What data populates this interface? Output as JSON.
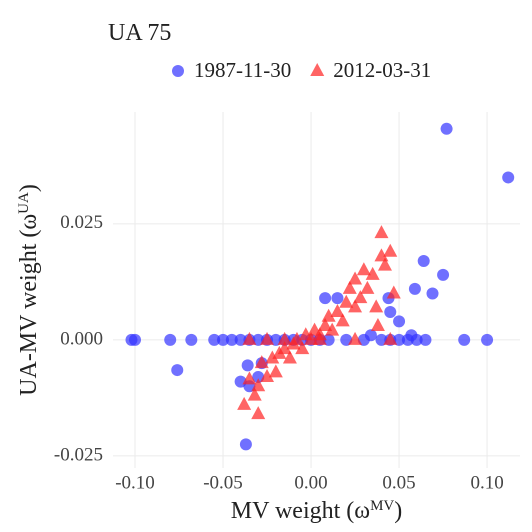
{
  "chart_data": {
    "type": "scatter",
    "title": "UA 75",
    "x_label": [
      "MV weight (ω",
      "MV",
      ")"
    ],
    "y_label": [
      "UA-MV weight (ω",
      "UA",
      ")"
    ],
    "xlim": [
      -0.1125,
      0.1187
    ],
    "ylim": [
      -0.0276,
      0.0491
    ],
    "xticks": [
      {
        "value": -0.1,
        "label": "-0.10"
      },
      -0.05,
      {
        "value": 0,
        "label": "0.00"
      },
      0.05,
      {
        "value": 0.1,
        "label": "0.10"
      }
    ],
    "yticks": [
      -0.025,
      {
        "value": 0,
        "label": "0.000"
      },
      0.025
    ],
    "grid": true,
    "legend": "top",
    "series": [
      {
        "name": "1987-11-30",
        "color": "#3333ff",
        "shape": "circle",
        "x": [
          -0.102,
          -0.1,
          -0.08,
          -0.068,
          -0.055,
          -0.05,
          -0.045,
          -0.04,
          -0.035,
          -0.03,
          -0.025,
          -0.02,
          -0.015,
          -0.01,
          -0.005,
          0,
          0.005,
          0.01,
          0.02,
          0.03,
          0.04,
          0.045,
          0.05,
          0.055,
          0.06,
          0.065,
          0.087,
          0.1,
          0.077,
          0.112,
          0.064,
          0.075,
          0.059,
          0.069,
          0.044,
          0.045,
          0.05,
          0.057,
          0.034,
          -0.076,
          -0.036,
          -0.04,
          -0.037,
          -0.035,
          -0.03,
          -0.028,
          0.008,
          0.015
        ],
        "y": [
          0,
          0,
          0,
          0,
          0,
          0,
          0,
          0,
          0,
          0,
          0,
          0,
          0,
          0,
          0,
          0,
          0,
          0,
          0,
          0,
          0,
          0,
          0,
          0,
          0,
          0,
          0,
          0,
          0.0455,
          0.035,
          0.017,
          0.014,
          0.011,
          0.01,
          0.009,
          0.006,
          0.004,
          0.001,
          0.001,
          -0.0065,
          -0.0055,
          -0.009,
          -0.0225,
          -0.01,
          -0.008,
          -0.005,
          0.009,
          0.009
        ]
      },
      {
        "name": "2012-03-31",
        "color": "#ff2222",
        "shape": "triangle",
        "x": [
          -0.038,
          -0.035,
          -0.032,
          -0.03,
          -0.03,
          -0.028,
          -0.025,
          -0.022,
          -0.02,
          -0.018,
          -0.015,
          -0.012,
          -0.01,
          -0.008,
          -0.005,
          -0.003,
          0,
          0.002,
          0.005,
          0.008,
          0.01,
          0.012,
          0.015,
          0.018,
          0.02,
          0.022,
          0.025,
          0.025,
          0.028,
          0.03,
          0.032,
          0.035,
          0.037,
          0.04,
          0.04,
          0.042,
          0.045,
          0.047,
          0.038,
          -0.035,
          -0.025,
          -0.015,
          0.045,
          0.005,
          0.025
        ],
        "y": [
          -0.014,
          -0.0085,
          -0.012,
          -0.016,
          -0.01,
          -0.005,
          -0.008,
          -0.004,
          -0.007,
          -0.003,
          -0.002,
          -0.004,
          -0.001,
          0,
          -0.002,
          0.001,
          0,
          0.002,
          0.001,
          0.003,
          0.005,
          0.002,
          0.006,
          0.004,
          0.008,
          0.011,
          0.007,
          0.013,
          0.009,
          0.015,
          0.011,
          0.014,
          0.007,
          0.018,
          0.023,
          0.016,
          0.019,
          0.01,
          0.003,
          0,
          0,
          0,
          0,
          0,
          0
        ]
      }
    ]
  }
}
